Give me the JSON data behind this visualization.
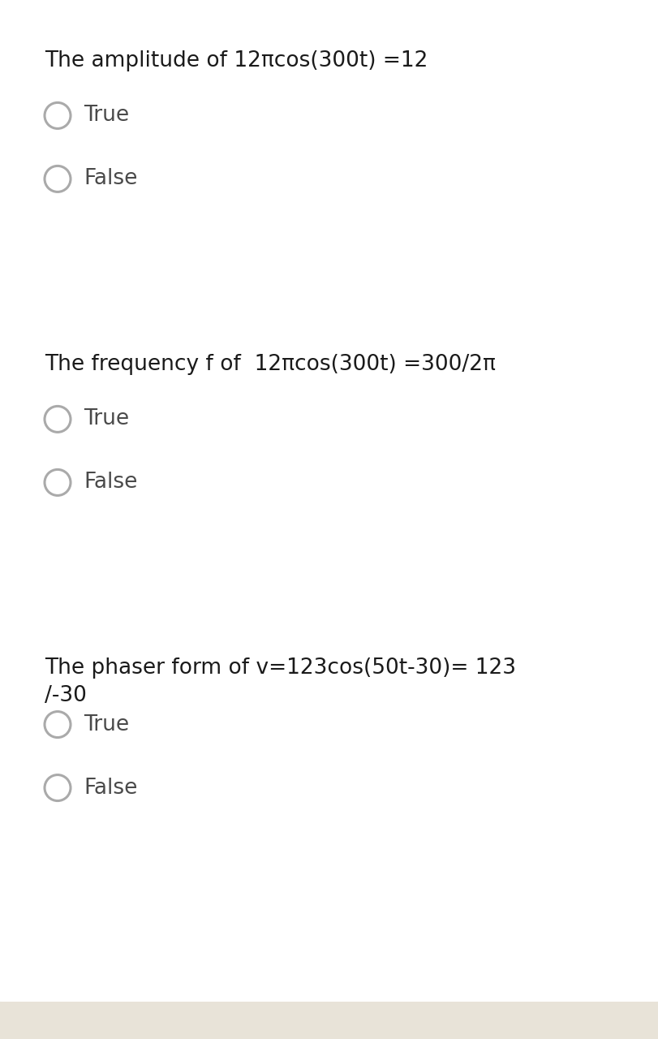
{
  "bg_color": "#e8e3d8",
  "card_color": "#ffffff",
  "text_color": "#1a1a1a",
  "option_color": "#4a4a4a",
  "circle_edge_color": "#aaaaaa",
  "questions": [
    {
      "question": "The amplitude of 12πcos(300t) =12",
      "options": [
        "True",
        "False"
      ],
      "two_line": false
    },
    {
      "question": "The frequency f of  12πcos(300t) =300/2π",
      "options": [
        "True",
        "False"
      ],
      "two_line": false
    },
    {
      "question": "The phaser form of v=123cos(50t-30)= 123\n/-30",
      "options": [
        "True",
        "False"
      ],
      "two_line": true
    }
  ],
  "fig_width": 8.11,
  "fig_height": 12.8,
  "dpi": 100,
  "question_fontsize": 19,
  "option_fontsize": 19
}
